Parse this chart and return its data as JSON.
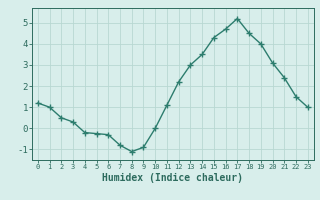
{
  "x": [
    0,
    1,
    2,
    3,
    4,
    5,
    6,
    7,
    8,
    9,
    10,
    11,
    12,
    13,
    14,
    15,
    16,
    17,
    18,
    19,
    20,
    21,
    22,
    23
  ],
  "y": [
    1.2,
    1.0,
    0.5,
    0.3,
    -0.2,
    -0.25,
    -0.3,
    -0.8,
    -1.1,
    -0.9,
    0.0,
    1.1,
    2.2,
    3.0,
    3.5,
    4.3,
    4.7,
    5.2,
    4.5,
    4.0,
    3.1,
    2.4,
    1.5,
    1.0
  ],
  "xlabel": "Humidex (Indice chaleur)",
  "line_color": "#2d7d6e",
  "bg_color": "#d8eeeb",
  "grid_color": "#b8d8d2",
  "text_color": "#2d6b5e",
  "ylim": [
    -1.5,
    5.7
  ],
  "xlim": [
    -0.5,
    23.5
  ],
  "yticks": [
    -1,
    0,
    1,
    2,
    3,
    4,
    5
  ],
  "xticks": [
    0,
    1,
    2,
    3,
    4,
    5,
    6,
    7,
    8,
    9,
    10,
    11,
    12,
    13,
    14,
    15,
    16,
    17,
    18,
    19,
    20,
    21,
    22,
    23
  ],
  "marker_size": 5,
  "line_width": 1.0
}
